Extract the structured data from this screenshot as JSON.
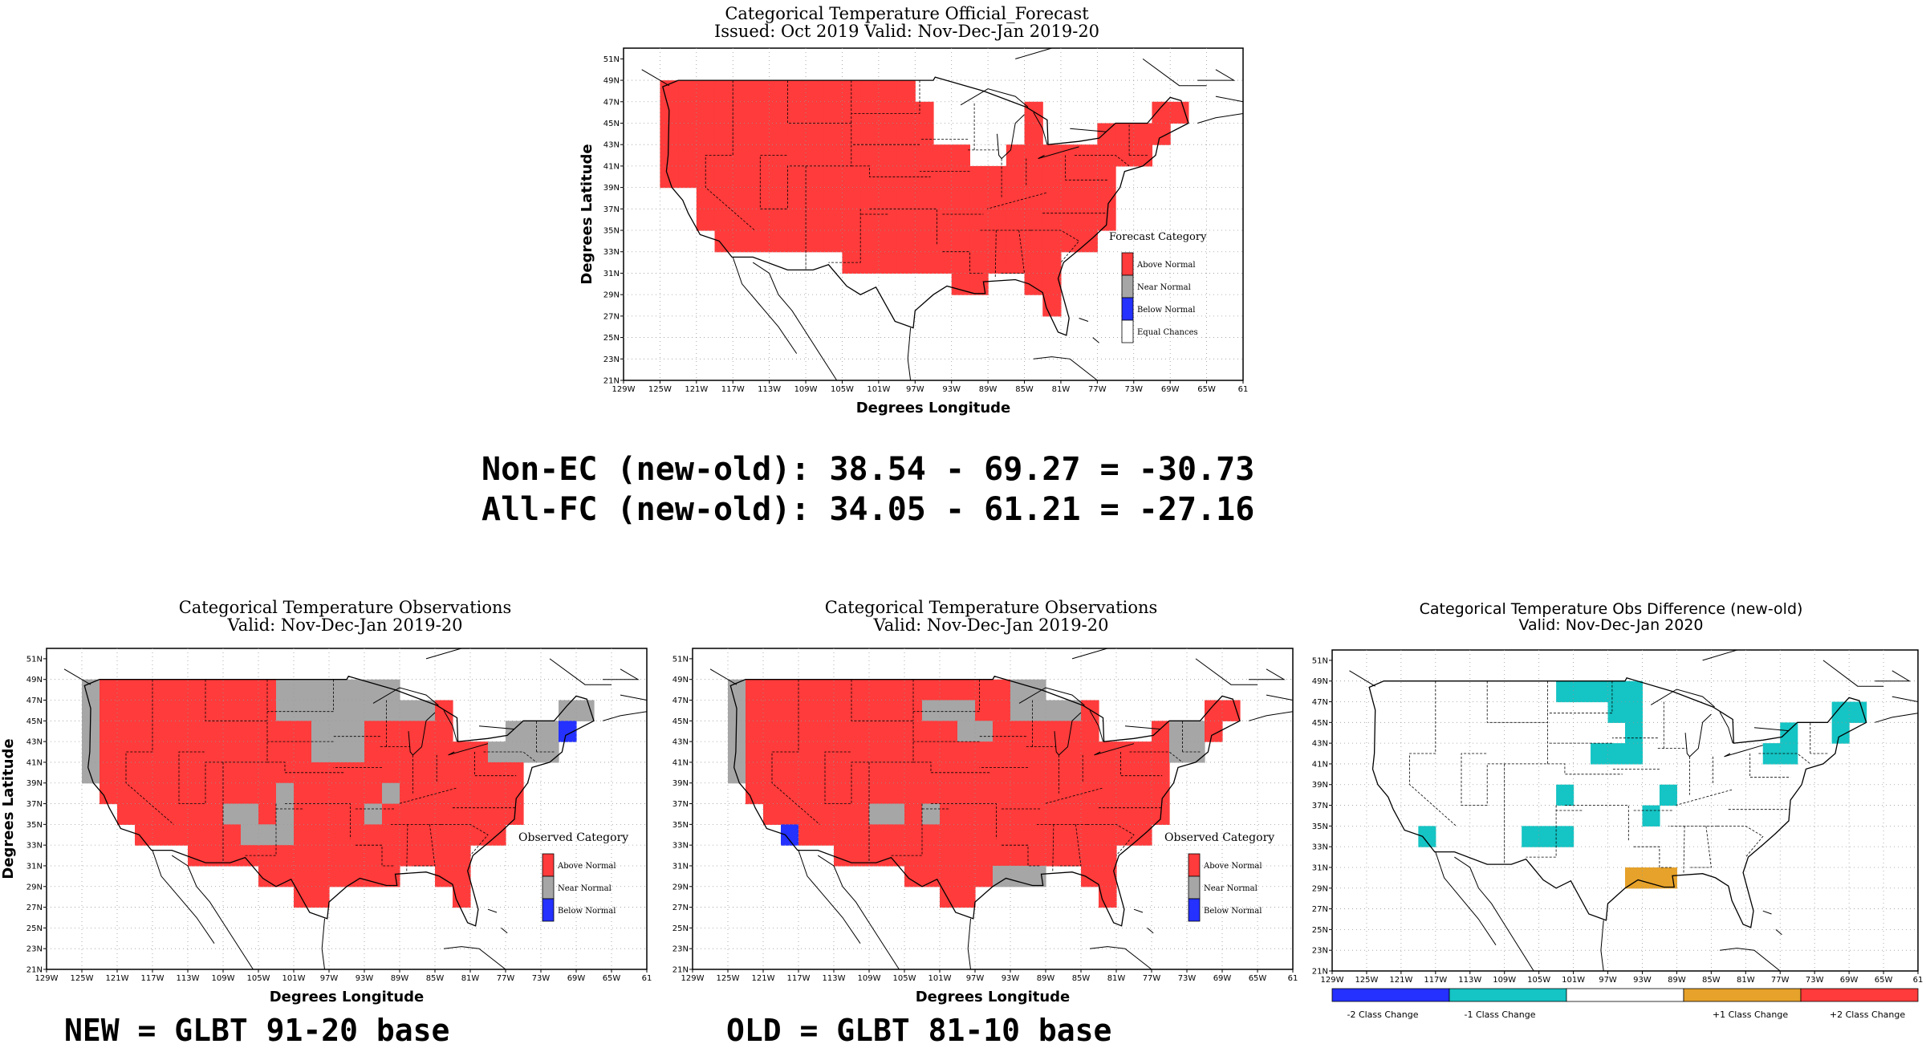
{
  "colors": {
    "above": "#ff3b3b",
    "near": "#a6a6a6",
    "below": "#2431ff",
    "ec": "#ffffff",
    "cyan": "#15c4c4",
    "orange": "#e6a22a"
  },
  "lon_ticks": [
    "129W",
    "125W",
    "121W",
    "117W",
    "113W",
    "109W",
    "105W",
    "101W",
    "97W",
    "93W",
    "89W",
    "85W",
    "81W",
    "77W",
    "73W",
    "69W",
    "65W",
    "61"
  ],
  "lat_ticks": [
    "51N",
    "49N",
    "47N",
    "45N",
    "43N",
    "41N",
    "39N",
    "37N",
    "35N",
    "33N",
    "31N",
    "29N",
    "27N",
    "25N",
    "23N",
    "21N"
  ],
  "forecast": {
    "title": "Categorical Temperature Official_Forecast",
    "subtitle": "Issued: Oct 2019 Valid: Nov-Dec-Jan 2019-20",
    "xlabel": "Degrees Longitude",
    "ylabel": "Degrees Latitude",
    "legend_title": "Forecast Category",
    "legend": [
      "Above Normal",
      "Near Normal",
      "Below Normal",
      "Equal Chances"
    ]
  },
  "scores": {
    "line1": "Non-EC (new-old): 38.54 - 69.27 = -30.73",
    "line2": "All-FC (new-old): 34.05 - 61.21 = -27.16"
  },
  "obs_new": {
    "title": "Categorical Temperature Observations",
    "subtitle": "Valid: Nov-Dec-Jan 2019-20",
    "xlabel": "Degrees Longitude",
    "ylabel": "Degrees Latitude",
    "legend_title": "Observed Category",
    "legend": [
      "Above Normal",
      "Near Normal",
      "Below Normal"
    ],
    "caption": "NEW = GLBT 91-20 base"
  },
  "obs_old": {
    "title": "Categorical Temperature Observations",
    "subtitle": "Valid: Nov-Dec-Jan 2019-20",
    "xlabel": "Degrees Longitude",
    "ylabel": "Degrees Latitude",
    "legend_title": "Observed Category",
    "legend": [
      "Above Normal",
      "Near Normal",
      "Below Normal"
    ],
    "caption": "OLD = GLBT 81-10 base"
  },
  "diff": {
    "title": "Categorical Temperature Obs Difference (new-old)",
    "subtitle": "Valid: Nov-Dec-Jan 2020",
    "colorbar": [
      "-2 Class Change",
      "-1 Class Change",
      "+1 Class Change",
      "+2 Class Change"
    ]
  }
}
